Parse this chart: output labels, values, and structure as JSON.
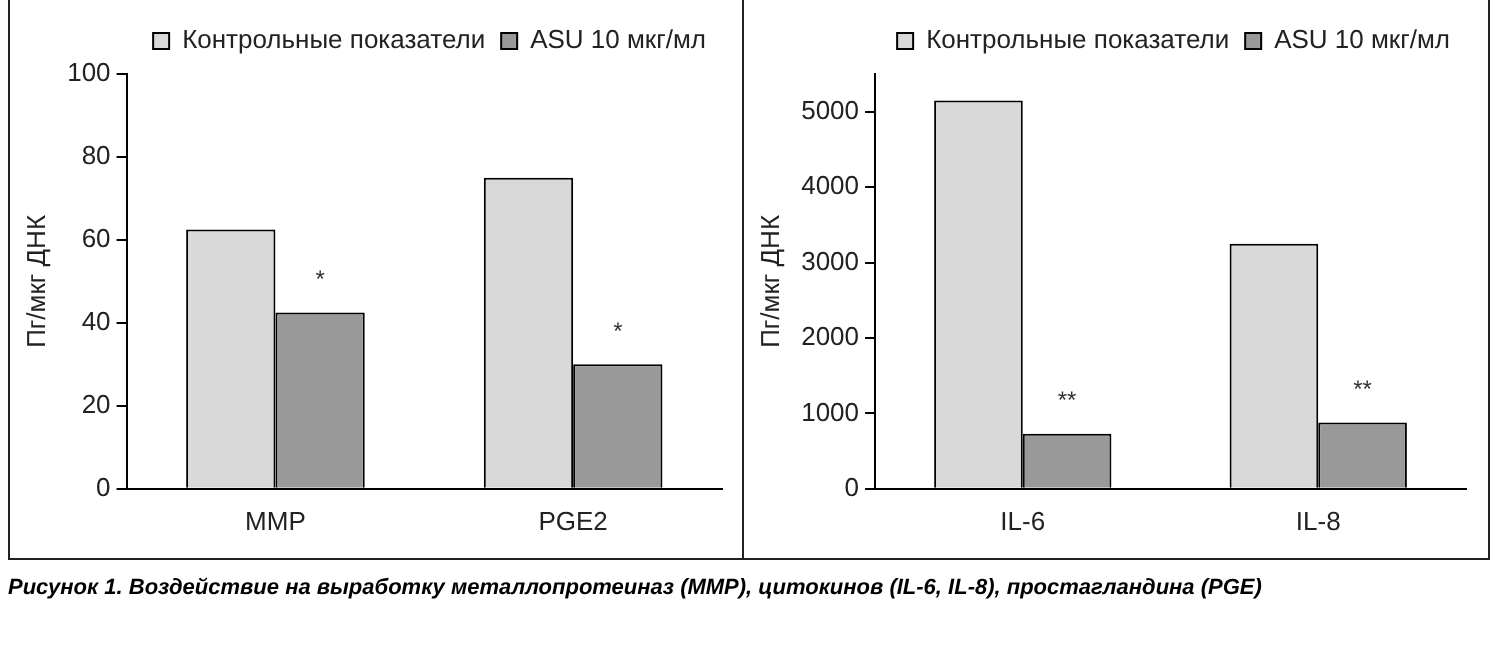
{
  "chart_data": [
    {
      "type": "bar",
      "ylabel": "Пг/мкг ДНК",
      "categories": [
        "MMP",
        "PGE2"
      ],
      "series": [
        {
          "name": "Контрольные показатели",
          "color": "#d9d9d9",
          "values": [
            62.5,
            75
          ]
        },
        {
          "name": "ASU 10 мкг/мл",
          "color": "#999999",
          "values": [
            42.5,
            30
          ],
          "value_labels": [
            "*",
            "*"
          ]
        }
      ],
      "ylim": [
        0,
        100
      ],
      "yticks": [
        0,
        20,
        40,
        60,
        80,
        100
      ],
      "grid": false,
      "legend": "top right",
      "annotations": [
        "Рисунок 1. Воздействие на выработку металлопротеиназ (MMP), цитокинов (IL-6, IL-8), простагландина (PGE)"
      ]
    },
    {
      "type": "bar",
      "ylabel": "Пг/мкг ДНК",
      "categories": [
        "IL-6",
        "IL-8"
      ],
      "series": [
        {
          "name": "Контрольные показатели",
          "color": "#d9d9d9",
          "values": [
            5150,
            3250
          ]
        },
        {
          "name": "ASU 10 мкг/мл",
          "color": "#999999",
          "values": [
            730,
            880
          ],
          "value_labels": [
            "**",
            "**"
          ]
        }
      ],
      "ylim": [
        0,
        5500
      ],
      "yticks": [
        0,
        1000,
        2000,
        3000,
        4000,
        5000
      ],
      "grid": false,
      "legend": "top right"
    }
  ]
}
